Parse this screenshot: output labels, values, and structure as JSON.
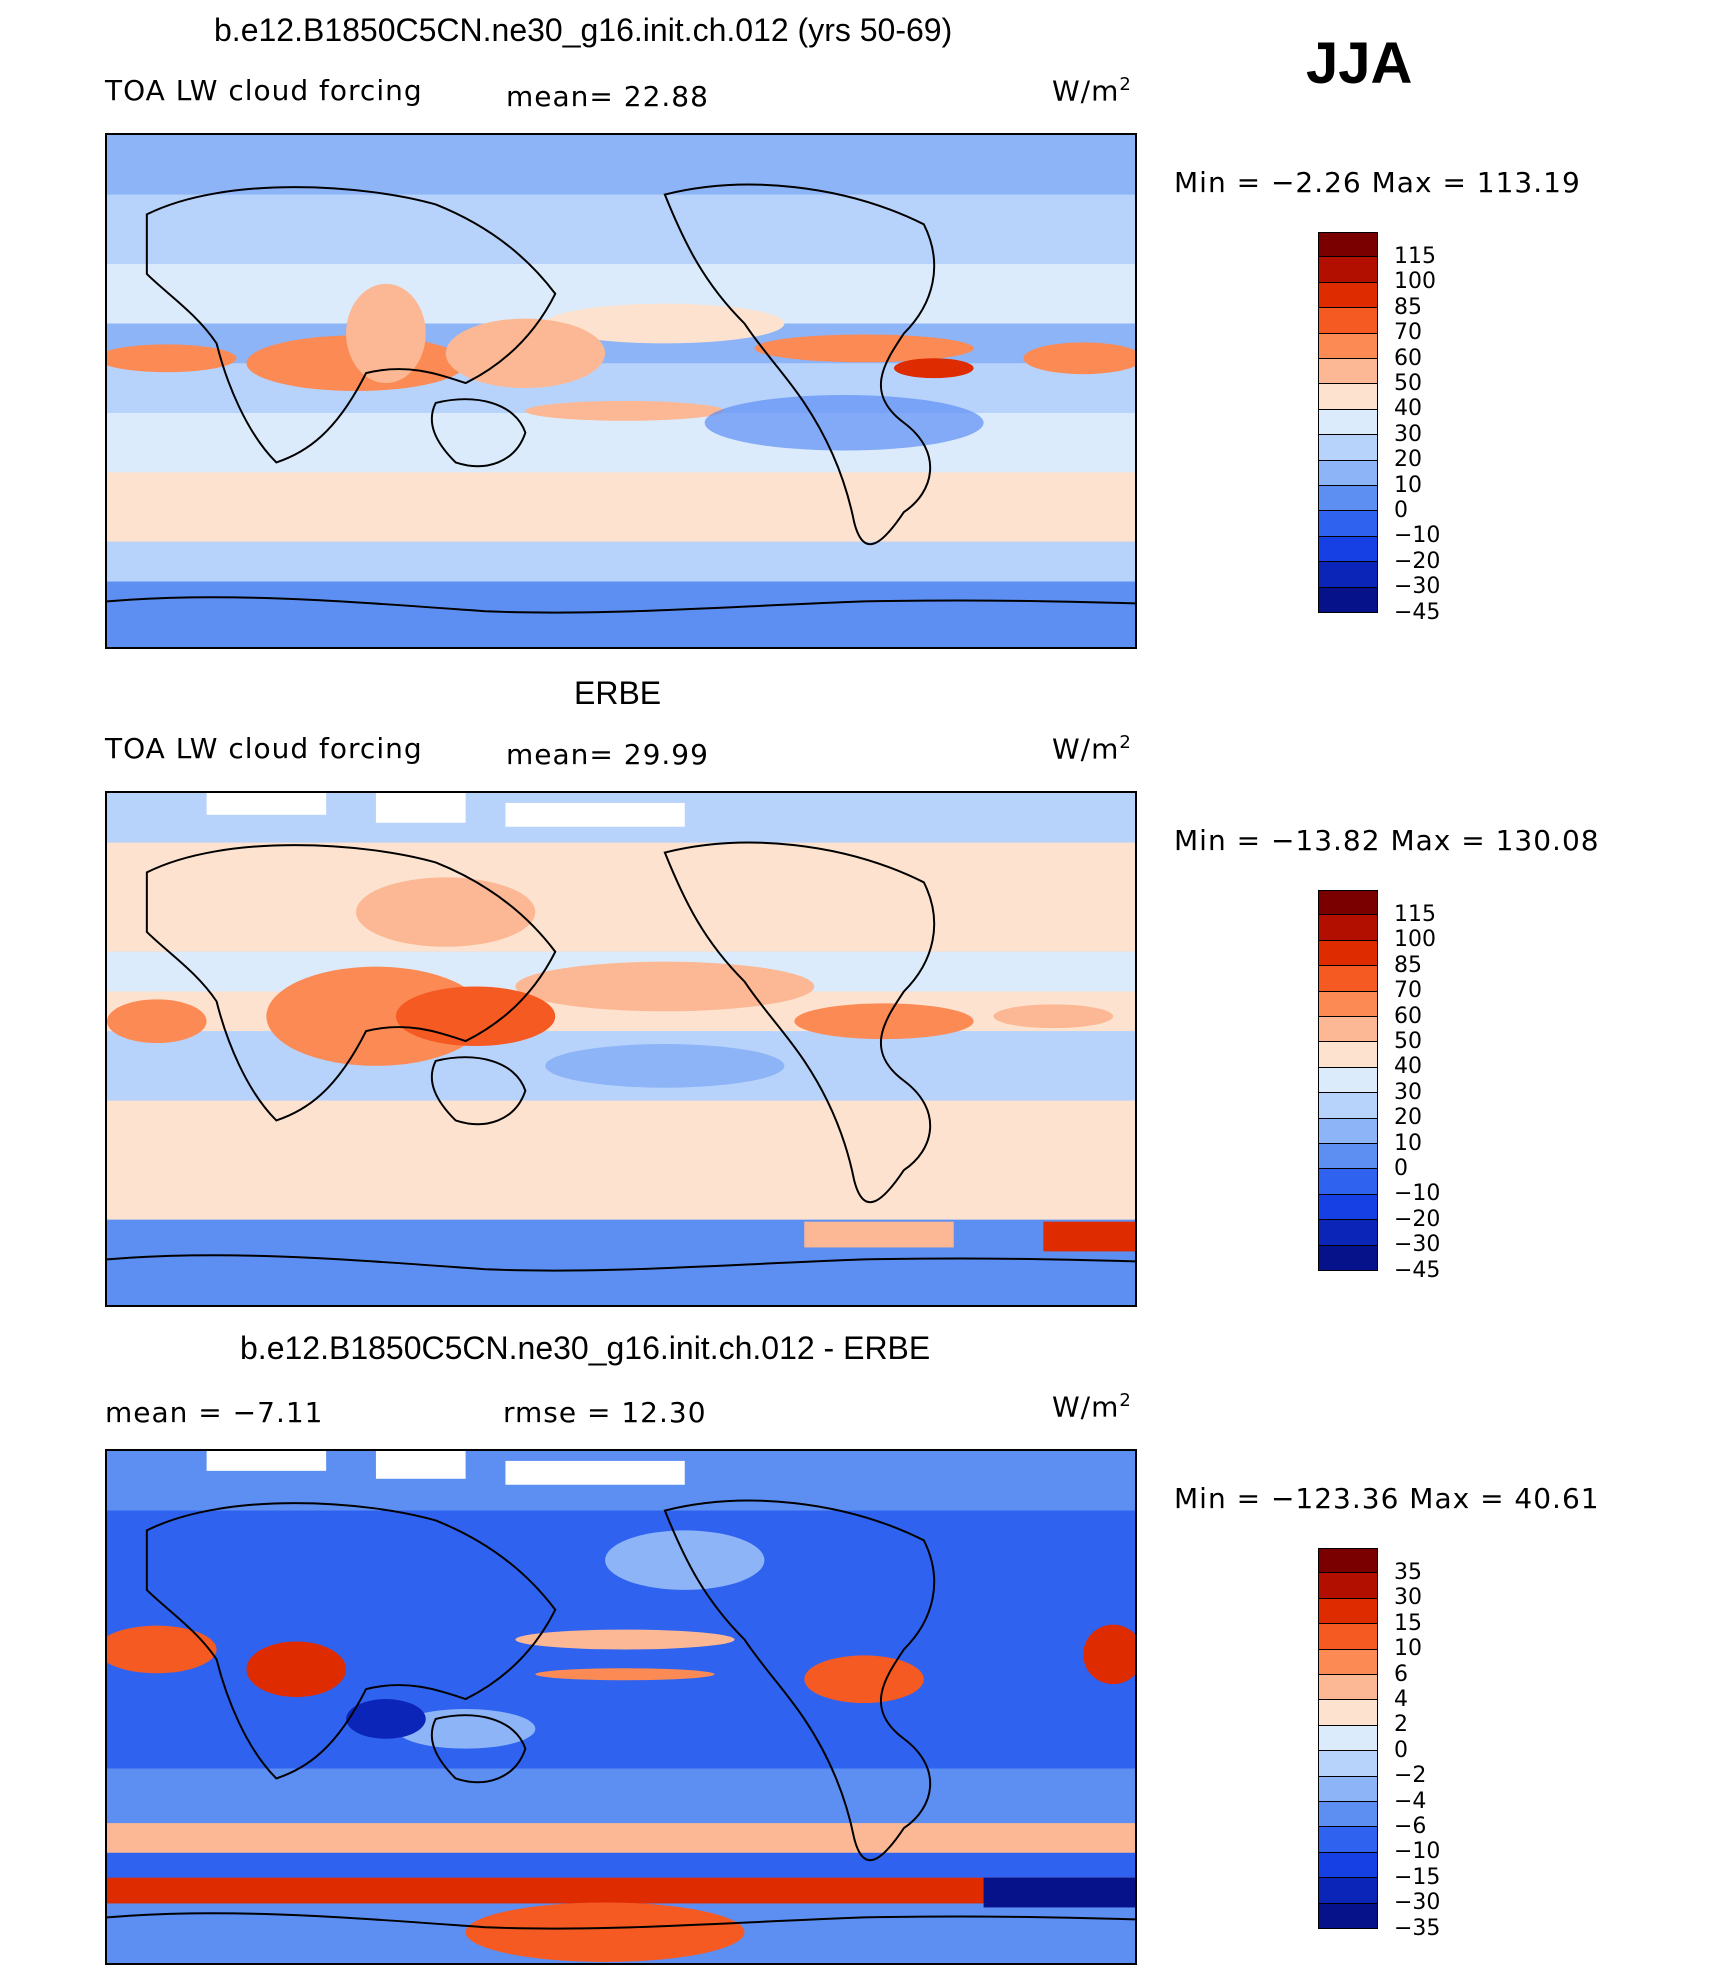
{
  "season": "JJA",
  "panels": [
    {
      "title": "b.e12.B1850C5CN.ne30_g16.init.ch.012 (yrs 50-69)",
      "left_label": "TOA LW cloud forcing",
      "mid_label": "mean=  22.88",
      "units": "W/m",
      "units_sup": "2",
      "minmax": "Min =  −2.26  Max = 113.19",
      "colorbar": {
        "colors": [
          "#7a0000",
          "#b30f00",
          "#de2b00",
          "#f55a22",
          "#fb8a55",
          "#fcb894",
          "#fde3cf",
          "#dcebfb",
          "#b8d3fb",
          "#8db4f7",
          "#5d8ff3",
          "#2f63ef",
          "#1640e4",
          "#0a25b8",
          "#05128a"
        ],
        "ticks": [
          "115",
          "100",
          "85",
          "70",
          "60",
          "50",
          "40",
          "30",
          "20",
          "10",
          "0",
          "−10",
          "−20",
          "−30",
          "−45"
        ]
      }
    },
    {
      "title": "ERBE",
      "left_label": "TOA LW cloud forcing",
      "mid_label": "mean=  29.99",
      "units": "W/m",
      "units_sup": "2",
      "minmax": "Min = −13.82  Max = 130.08",
      "colorbar": {
        "colors": [
          "#7a0000",
          "#b30f00",
          "#de2b00",
          "#f55a22",
          "#fb8a55",
          "#fcb894",
          "#fde3cf",
          "#dcebfb",
          "#b8d3fb",
          "#8db4f7",
          "#5d8ff3",
          "#2f63ef",
          "#1640e4",
          "#0a25b8",
          "#05128a"
        ],
        "ticks": [
          "115",
          "100",
          "85",
          "70",
          "60",
          "50",
          "40",
          "30",
          "20",
          "10",
          "0",
          "−10",
          "−20",
          "−30",
          "−45"
        ]
      }
    },
    {
      "title": "b.e12.B1850C5CN.ne30_g16.init.ch.012 - ERBE",
      "left_label": "mean =  −7.11",
      "mid_label": "rmse =  12.30",
      "units": "W/m",
      "units_sup": "2",
      "minmax": "Min = −123.36  Max =  40.61",
      "colorbar": {
        "colors": [
          "#7a0000",
          "#b30f00",
          "#de2b00",
          "#f55a22",
          "#fb8a55",
          "#fcb894",
          "#fde3cf",
          "#dcebfb",
          "#b8d3fb",
          "#8db4f7",
          "#5d8ff3",
          "#2f63ef",
          "#1640e4",
          "#0a25b8",
          "#05128a"
        ],
        "ticks": [
          "35",
          "30",
          "15",
          "10",
          "6",
          "4",
          "2",
          "0",
          "−2",
          "−4",
          "−6",
          "−10",
          "−15",
          "−30",
          "−35"
        ]
      }
    }
  ]
}
